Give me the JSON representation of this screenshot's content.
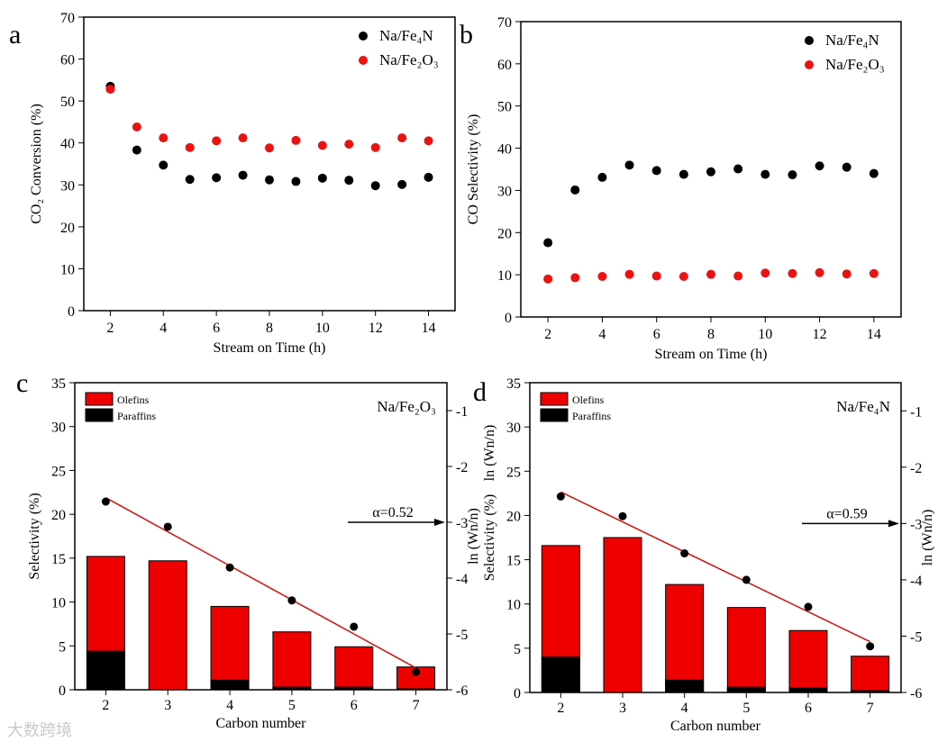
{
  "watermark": "大数跨境",
  "chart_data": [
    {
      "panel": "a",
      "type": "scatter",
      "xlabel": "Stream on Time (h)",
      "ylabel": "CO₂ Conversion (%)",
      "xlim": [
        1,
        15
      ],
      "ylim": [
        0,
        70
      ],
      "xticks": [
        2,
        4,
        6,
        8,
        10,
        12,
        14
      ],
      "yticks": [
        0,
        10,
        20,
        30,
        40,
        50,
        60,
        70
      ],
      "legend_position": "top-right",
      "x": [
        2,
        3,
        4,
        5,
        6,
        7,
        8,
        9,
        10,
        11,
        12,
        13,
        14
      ],
      "series": [
        {
          "name": "Na/Fe₄N",
          "color": "#000000",
          "values": [
            53.5,
            38.3,
            34.7,
            31.3,
            31.7,
            32.3,
            31.2,
            30.8,
            31.6,
            31.1,
            29.8,
            30.1,
            31.8
          ]
        },
        {
          "name": "Na/Fe₂O₃",
          "color": "#ee1111",
          "values": [
            52.8,
            43.8,
            41.2,
            38.9,
            40.5,
            41.2,
            38.8,
            40.6,
            39.4,
            39.7,
            38.9,
            41.2,
            40.5
          ]
        }
      ]
    },
    {
      "panel": "b",
      "type": "scatter",
      "xlabel": "Stream on Time (h)",
      "ylabel": "CO Selectivity (%)",
      "xlim": [
        1,
        15
      ],
      "ylim": [
        0,
        70
      ],
      "xticks": [
        2,
        4,
        6,
        8,
        10,
        12,
        14
      ],
      "yticks": [
        0,
        10,
        20,
        30,
        40,
        50,
        60,
        70
      ],
      "legend_position": "top-right",
      "x": [
        2,
        3,
        4,
        5,
        6,
        7,
        8,
        9,
        10,
        11,
        12,
        13,
        14
      ],
      "series": [
        {
          "name": "Na/Fe₄N",
          "color": "#000000",
          "values": [
            17.6,
            30.1,
            33.1,
            36.0,
            34.7,
            33.8,
            34.4,
            35.1,
            33.8,
            33.7,
            35.8,
            35.5,
            34.0
          ]
        },
        {
          "name": "Na/Fe₂O₃",
          "color": "#ee1111",
          "values": [
            9.0,
            9.3,
            9.6,
            10.1,
            9.7,
            9.6,
            10.1,
            9.7,
            10.4,
            10.3,
            10.5,
            10.2,
            10.3
          ]
        }
      ]
    },
    {
      "panel": "c",
      "type": "bar",
      "title": "Na/Fe₂O₃",
      "xlabel": "Carbon number",
      "ylabel": "Selectivity (%)",
      "ylabel_right": "ln (Wn/n)",
      "categories": [
        2,
        3,
        4,
        5,
        6,
        7
      ],
      "xlim": [
        1.5,
        7.5
      ],
      "ylim": [
        0,
        35
      ],
      "ylim_right": [
        -6,
        -0.5
      ],
      "yticks": [
        0,
        5,
        10,
        15,
        20,
        25,
        30,
        35
      ],
      "yticks_right": [
        -6,
        -5,
        -4,
        -3,
        -2,
        -1
      ],
      "legend_position": "top-left",
      "series": [
        {
          "name": "Olefins",
          "color": "#ee0000",
          "total": [
            15.2,
            14.7,
            9.5,
            6.6,
            4.9,
            2.6
          ]
        },
        {
          "name": "Paraffins",
          "color": "#000000",
          "values": [
            4.4,
            0,
            1.1,
            0.3,
            0.3,
            0.1
          ]
        }
      ],
      "ln_points": [
        -2.63,
        -3.08,
        -3.81,
        -4.4,
        -4.87,
        -5.68
      ],
      "fit_line": [
        [
          2,
          -2.56
        ],
        [
          7,
          -5.61
        ]
      ],
      "annotation": "α=0.52"
    },
    {
      "panel": "d",
      "type": "bar",
      "title": "Na/Fe₄N",
      "xlabel": "Carbon number",
      "ylabel": "Selectivity (%)",
      "ylabel_right": "ln (Wn/n)",
      "ylabel_extra": "ln (Wn/n)",
      "categories": [
        2,
        3,
        4,
        5,
        6,
        7
      ],
      "xlim": [
        1.5,
        7.5
      ],
      "ylim": [
        0,
        35
      ],
      "ylim_right": [
        -6,
        -0.5
      ],
      "yticks": [
        0,
        5,
        10,
        15,
        20,
        25,
        30,
        35
      ],
      "yticks_right": [
        -6,
        -5,
        -4,
        -3,
        -2,
        -1
      ],
      "legend_position": "top-left",
      "series": [
        {
          "name": "Olefins",
          "color": "#ee0000",
          "total": [
            16.6,
            17.5,
            12.2,
            9.6,
            7.0,
            4.1
          ]
        },
        {
          "name": "Paraffins",
          "color": "#000000",
          "values": [
            4.0,
            0,
            1.4,
            0.6,
            0.5,
            0.2
          ]
        }
      ],
      "ln_points": [
        -2.52,
        -2.87,
        -3.53,
        -4.0,
        -4.48,
        -5.18
      ],
      "fit_line": [
        [
          2,
          -2.44
        ],
        [
          7,
          -5.1
        ]
      ],
      "annotation": "α=0.59"
    }
  ]
}
